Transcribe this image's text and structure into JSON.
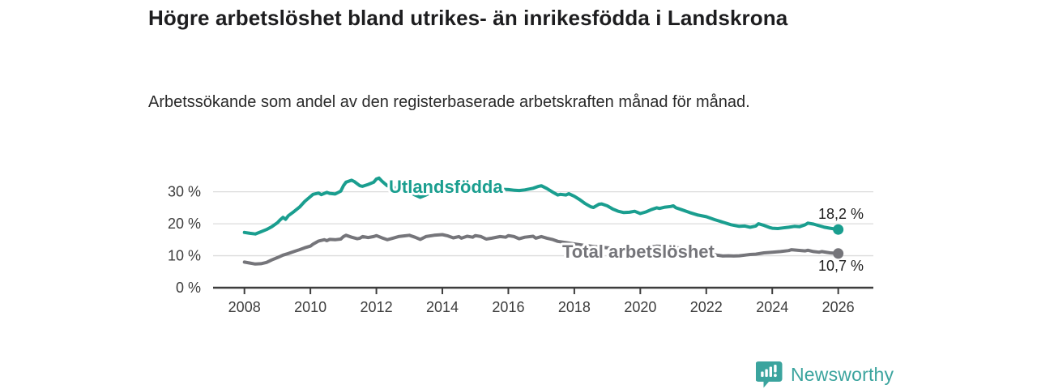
{
  "header": {
    "title": "Högre arbetslöshet bland utrikes- än inrikesfödda i Landskrona",
    "subtitle": "Arbetssökande som andel av den registerbaserade arbetskraften månad för månad."
  },
  "chart_data": {
    "type": "line",
    "title": "Högre arbetslöshet bland utrikes- än inrikesfödda i Landskrona",
    "subtitle": "Arbetssökande som andel av den registerbaserade arbetskraften månad för månad.",
    "unit": "%",
    "grid": true,
    "legend": "inline-labels-on-lines",
    "x_axis": {
      "range": [
        2007.05,
        2027.1
      ],
      "ticks": [
        {
          "value": 2008,
          "label": "2008"
        },
        {
          "value": 2010,
          "label": "2010"
        },
        {
          "value": 2012,
          "label": "2012"
        },
        {
          "value": 2014,
          "label": "2014"
        },
        {
          "value": 2016,
          "label": "2016"
        },
        {
          "value": 2018,
          "label": "2018"
        },
        {
          "value": 2020,
          "label": "2020"
        },
        {
          "value": 2022,
          "label": "2022"
        },
        {
          "value": 2024,
          "label": "2024"
        },
        {
          "value": 2026,
          "label": "2026"
        }
      ]
    },
    "y_axis": {
      "range": [
        0,
        36
      ],
      "ticks": [
        {
          "value": 0,
          "label": "0 %"
        },
        {
          "value": 10,
          "label": "10 %"
        },
        {
          "value": 20,
          "label": "20 %"
        },
        {
          "value": 30,
          "label": "30 %"
        }
      ]
    },
    "series": [
      {
        "name": "Utlandsfödda",
        "color": "#1a9e8f",
        "end_value": 18.2,
        "end_label": "18,2 %",
        "points": [
          [
            2008.0,
            17.3
          ],
          [
            2008.17,
            17.0
          ],
          [
            2008.33,
            16.8
          ],
          [
            2008.5,
            17.5
          ],
          [
            2008.67,
            18.2
          ],
          [
            2008.83,
            19.1
          ],
          [
            2009.0,
            20.3
          ],
          [
            2009.08,
            21.2
          ],
          [
            2009.17,
            22.0
          ],
          [
            2009.25,
            21.4
          ],
          [
            2009.33,
            22.5
          ],
          [
            2009.5,
            23.8
          ],
          [
            2009.67,
            25.2
          ],
          [
            2009.83,
            27.0
          ],
          [
            2010.0,
            28.5
          ],
          [
            2010.08,
            29.2
          ],
          [
            2010.25,
            29.6
          ],
          [
            2010.33,
            29.1
          ],
          [
            2010.5,
            29.8
          ],
          [
            2010.58,
            29.5
          ],
          [
            2010.75,
            29.3
          ],
          [
            2010.92,
            30.2
          ],
          [
            2011.0,
            31.9
          ],
          [
            2011.08,
            33.0
          ],
          [
            2011.25,
            33.6
          ],
          [
            2011.33,
            33.2
          ],
          [
            2011.5,
            31.9
          ],
          [
            2011.58,
            31.7
          ],
          [
            2011.75,
            32.3
          ],
          [
            2011.92,
            33.0
          ],
          [
            2012.0,
            34.0
          ],
          [
            2012.08,
            34.3
          ],
          [
            2012.17,
            33.3
          ],
          [
            2012.33,
            31.9
          ],
          [
            2012.5,
            31.4
          ],
          [
            2012.67,
            31.0
          ],
          [
            2012.83,
            30.5
          ],
          [
            2013.0,
            30.0
          ],
          [
            2013.17,
            29.0
          ],
          [
            2013.33,
            28.3
          ],
          [
            2013.5,
            29.0
          ],
          [
            2013.67,
            29.8
          ],
          [
            2013.83,
            30.4
          ],
          [
            2014.0,
            30.8
          ],
          [
            2014.25,
            31.0
          ],
          [
            2014.5,
            30.6
          ],
          [
            2014.75,
            30.7
          ],
          [
            2015.0,
            30.9
          ],
          [
            2015.25,
            30.5
          ],
          [
            2015.5,
            30.4
          ],
          [
            2015.75,
            30.8
          ],
          [
            2016.0,
            30.7
          ],
          [
            2016.17,
            30.5
          ],
          [
            2016.33,
            30.4
          ],
          [
            2016.5,
            30.6
          ],
          [
            2016.75,
            31.1
          ],
          [
            2016.92,
            31.7
          ],
          [
            2017.0,
            31.9
          ],
          [
            2017.17,
            31.0
          ],
          [
            2017.33,
            30.0
          ],
          [
            2017.5,
            29.0
          ],
          [
            2017.58,
            29.2
          ],
          [
            2017.75,
            29.0
          ],
          [
            2017.83,
            29.4
          ],
          [
            2018.0,
            28.6
          ],
          [
            2018.17,
            27.5
          ],
          [
            2018.33,
            26.3
          ],
          [
            2018.5,
            25.3
          ],
          [
            2018.58,
            25.1
          ],
          [
            2018.75,
            26.1
          ],
          [
            2018.83,
            26.2
          ],
          [
            2019.0,
            25.6
          ],
          [
            2019.17,
            24.6
          ],
          [
            2019.33,
            23.9
          ],
          [
            2019.5,
            23.5
          ],
          [
            2019.67,
            23.6
          ],
          [
            2019.83,
            23.9
          ],
          [
            2020.0,
            23.2
          ],
          [
            2020.17,
            23.7
          ],
          [
            2020.33,
            24.4
          ],
          [
            2020.5,
            25.0
          ],
          [
            2020.58,
            24.8
          ],
          [
            2020.75,
            25.2
          ],
          [
            2020.92,
            25.4
          ],
          [
            2021.0,
            25.6
          ],
          [
            2021.08,
            25.0
          ],
          [
            2021.25,
            24.4
          ],
          [
            2021.5,
            23.5
          ],
          [
            2021.75,
            22.7
          ],
          [
            2022.0,
            22.2
          ],
          [
            2022.25,
            21.3
          ],
          [
            2022.5,
            20.5
          ],
          [
            2022.75,
            19.7
          ],
          [
            2023.0,
            19.2
          ],
          [
            2023.17,
            19.3
          ],
          [
            2023.33,
            18.9
          ],
          [
            2023.5,
            19.3
          ],
          [
            2023.58,
            20.0
          ],
          [
            2023.75,
            19.5
          ],
          [
            2023.92,
            18.8
          ],
          [
            2024.0,
            18.6
          ],
          [
            2024.17,
            18.5
          ],
          [
            2024.33,
            18.7
          ],
          [
            2024.5,
            18.9
          ],
          [
            2024.67,
            19.2
          ],
          [
            2024.83,
            19.1
          ],
          [
            2025.0,
            19.7
          ],
          [
            2025.08,
            20.2
          ],
          [
            2025.25,
            19.9
          ],
          [
            2025.42,
            19.4
          ],
          [
            2025.58,
            18.9
          ],
          [
            2025.75,
            18.6
          ],
          [
            2026.0,
            18.2
          ]
        ]
      },
      {
        "name": "Total arbetslöshet",
        "color": "#75757a",
        "end_value": 10.7,
        "end_label": "10,7 %",
        "points": [
          [
            2008.0,
            8.0
          ],
          [
            2008.17,
            7.7
          ],
          [
            2008.33,
            7.4
          ],
          [
            2008.5,
            7.5
          ],
          [
            2008.67,
            7.9
          ],
          [
            2008.83,
            8.7
          ],
          [
            2009.0,
            9.4
          ],
          [
            2009.17,
            10.2
          ],
          [
            2009.33,
            10.7
          ],
          [
            2009.5,
            11.3
          ],
          [
            2009.67,
            11.9
          ],
          [
            2009.83,
            12.5
          ],
          [
            2010.0,
            13.0
          ],
          [
            2010.08,
            13.6
          ],
          [
            2010.25,
            14.6
          ],
          [
            2010.42,
            15.0
          ],
          [
            2010.5,
            14.7
          ],
          [
            2010.58,
            15.1
          ],
          [
            2010.75,
            15.0
          ],
          [
            2010.92,
            15.2
          ],
          [
            2011.0,
            16.0
          ],
          [
            2011.08,
            16.4
          ],
          [
            2011.25,
            15.8
          ],
          [
            2011.42,
            15.3
          ],
          [
            2011.5,
            15.5
          ],
          [
            2011.58,
            16.0
          ],
          [
            2011.75,
            15.7
          ],
          [
            2011.92,
            16.0
          ],
          [
            2012.0,
            16.3
          ],
          [
            2012.17,
            15.6
          ],
          [
            2012.33,
            15.0
          ],
          [
            2012.5,
            15.5
          ],
          [
            2012.67,
            16.0
          ],
          [
            2012.83,
            16.2
          ],
          [
            2013.0,
            16.4
          ],
          [
            2013.17,
            15.8
          ],
          [
            2013.33,
            15.1
          ],
          [
            2013.5,
            16.0
          ],
          [
            2013.75,
            16.4
          ],
          [
            2014.0,
            16.6
          ],
          [
            2014.17,
            16.2
          ],
          [
            2014.33,
            15.6
          ],
          [
            2014.5,
            16.0
          ],
          [
            2014.58,
            15.5
          ],
          [
            2014.75,
            16.1
          ],
          [
            2014.92,
            15.8
          ],
          [
            2015.0,
            16.3
          ],
          [
            2015.17,
            16.0
          ],
          [
            2015.33,
            15.2
          ],
          [
            2015.5,
            15.5
          ],
          [
            2015.75,
            16.0
          ],
          [
            2015.92,
            15.8
          ],
          [
            2016.0,
            16.3
          ],
          [
            2016.17,
            16.0
          ],
          [
            2016.33,
            15.3
          ],
          [
            2016.5,
            15.8
          ],
          [
            2016.75,
            16.1
          ],
          [
            2016.83,
            15.5
          ],
          [
            2017.0,
            16.0
          ],
          [
            2017.17,
            15.5
          ],
          [
            2017.33,
            15.1
          ],
          [
            2017.5,
            14.5
          ],
          [
            2017.75,
            14.1
          ],
          [
            2018.0,
            13.7
          ],
          [
            2018.25,
            13.3
          ],
          [
            2018.5,
            13.0
          ],
          [
            2018.75,
            12.7
          ],
          [
            2019.0,
            12.5
          ],
          [
            2019.25,
            12.3
          ],
          [
            2019.5,
            12.1
          ],
          [
            2019.75,
            12.0
          ],
          [
            2020.0,
            12.0
          ],
          [
            2020.25,
            12.6
          ],
          [
            2020.5,
            13.0
          ],
          [
            2020.75,
            12.9
          ],
          [
            2021.0,
            12.7
          ],
          [
            2021.25,
            12.3
          ],
          [
            2021.5,
            11.8
          ],
          [
            2021.75,
            11.3
          ],
          [
            2022.0,
            10.8
          ],
          [
            2022.17,
            10.5
          ],
          [
            2022.33,
            10.2
          ],
          [
            2022.5,
            9.9
          ],
          [
            2022.67,
            10.0
          ],
          [
            2022.83,
            9.9
          ],
          [
            2023.0,
            10.0
          ],
          [
            2023.17,
            10.2
          ],
          [
            2023.33,
            10.4
          ],
          [
            2023.5,
            10.5
          ],
          [
            2023.75,
            10.9
          ],
          [
            2024.0,
            11.1
          ],
          [
            2024.25,
            11.3
          ],
          [
            2024.5,
            11.6
          ],
          [
            2024.58,
            11.9
          ],
          [
            2024.75,
            11.7
          ],
          [
            2025.0,
            11.5
          ],
          [
            2025.08,
            11.7
          ],
          [
            2025.25,
            11.3
          ],
          [
            2025.42,
            11.1
          ],
          [
            2025.5,
            11.3
          ],
          [
            2025.75,
            10.9
          ],
          [
            2026.0,
            10.7
          ]
        ]
      }
    ]
  },
  "footer": {
    "brand": "Newsworthy",
    "brand_color": "#3ba49e"
  }
}
